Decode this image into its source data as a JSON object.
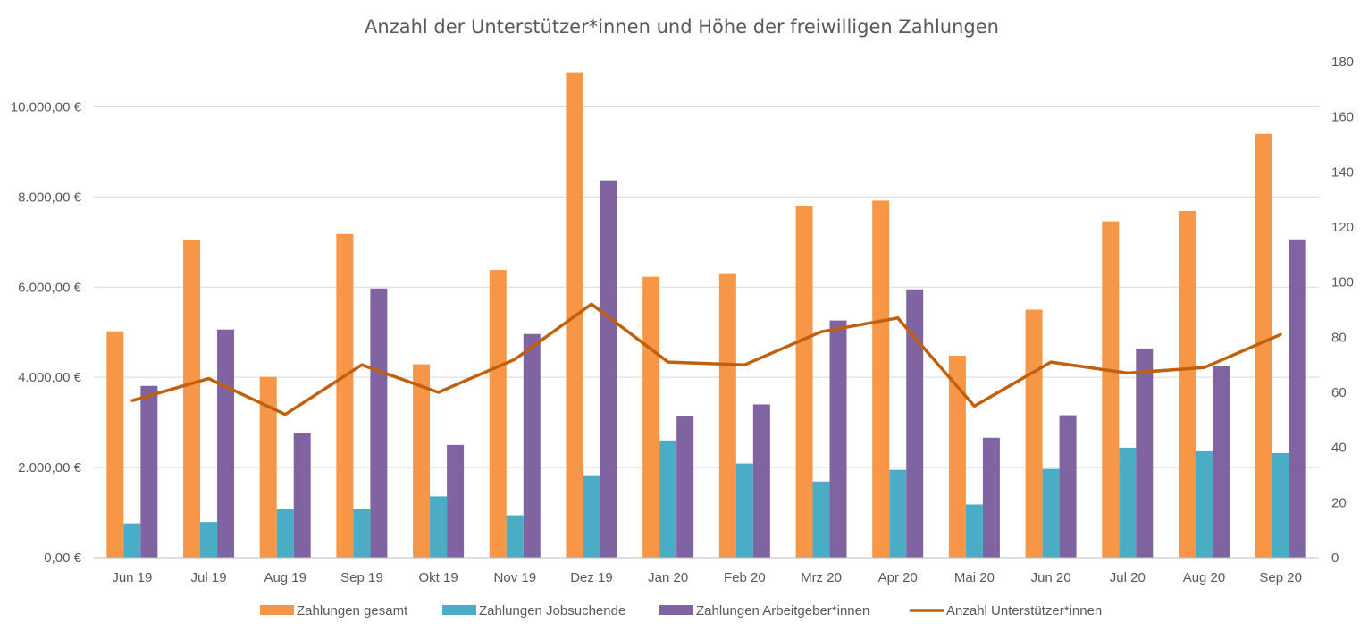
{
  "chart_data": {
    "type": "bar",
    "title": "Anzahl der Unterstützer*innen und Höhe der freiwilligen Zahlungen",
    "categories": [
      "Jun 19",
      "Jul 19",
      "Aug 19",
      "Sep 19",
      "Okt 19",
      "Nov 19",
      "Dez 19",
      "Jan 20",
      "Feb 20",
      "Mrz 20",
      "Apr 20",
      "Mai 20",
      "Jun 20",
      "Jul 20",
      "Aug 20",
      "Sep 20"
    ],
    "series": [
      {
        "name": "Zahlungen gesamt",
        "kind": "bar",
        "axis": "left",
        "color": "#f79646",
        "values": [
          5020,
          7040,
          4010,
          7180,
          4290,
          6380,
          10750,
          6230,
          6290,
          7790,
          7920,
          4480,
          5500,
          7460,
          7690,
          9400
        ]
      },
      {
        "name": "Zahlungen Jobsuchende",
        "kind": "bar",
        "axis": "left",
        "color": "#4bacc6",
        "values": [
          760,
          790,
          1070,
          1070,
          1360,
          940,
          1810,
          2600,
          2090,
          1690,
          1950,
          1180,
          1970,
          2440,
          2360,
          2320
        ]
      },
      {
        "name": "Zahlungen Arbeitgeber*innen",
        "kind": "bar",
        "axis": "left",
        "color": "#8064a2",
        "values": [
          3810,
          5060,
          2760,
          5970,
          2500,
          4960,
          8370,
          3140,
          3400,
          5260,
          5950,
          2660,
          3160,
          4640,
          4250,
          7060
        ]
      },
      {
        "name": "Anzahl Unterstützer*innen",
        "kind": "line",
        "axis": "right",
        "color": "#c0600e",
        "values": [
          57,
          65,
          52,
          70,
          60,
          72,
          92,
          71,
          70,
          82,
          87,
          55,
          71,
          67,
          69,
          81
        ]
      }
    ],
    "y_left": {
      "min": 0,
      "max": 11000,
      "ticks": [
        0,
        2000,
        4000,
        6000,
        8000,
        10000
      ],
      "tick_labels": [
        "0,00 €",
        "2.000,00 €",
        "4.000,00 €",
        "6.000,00 €",
        "8.000,00 €",
        "10.000,00 €"
      ]
    },
    "y_right": {
      "min": 0,
      "max": 180,
      "ticks": [
        0,
        20,
        40,
        60,
        80,
        100,
        120,
        140,
        160,
        180
      ],
      "tick_labels": [
        "0",
        "20",
        "40",
        "60",
        "80",
        "100",
        "120",
        "140",
        "160",
        "180"
      ]
    },
    "grid": true,
    "legend_position": "bottom"
  }
}
